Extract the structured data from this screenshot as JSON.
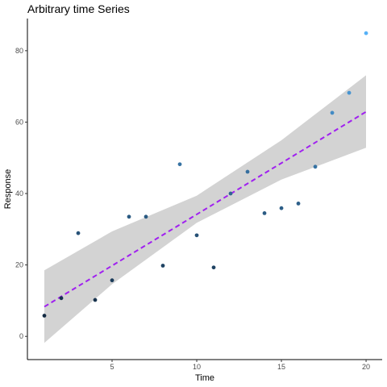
{
  "chart_data": {
    "type": "scatter",
    "title": "Arbitrary time Series",
    "xlabel": "Time",
    "ylabel": "Response",
    "xlim": [
      0.0,
      20.95
    ],
    "ylim": [
      -6.5,
      89.0
    ],
    "xticks": [
      5,
      10,
      15,
      20
    ],
    "yticks": [
      0,
      20,
      40,
      60,
      80
    ],
    "grid": false,
    "points": [
      {
        "x": 1,
        "y": 5.8
      },
      {
        "x": 2,
        "y": 10.7
      },
      {
        "x": 3,
        "y": 28.9
      },
      {
        "x": 4,
        "y": 10.2
      },
      {
        "x": 5,
        "y": 15.7
      },
      {
        "x": 6,
        "y": 33.5
      },
      {
        "x": 7,
        "y": 33.5
      },
      {
        "x": 8,
        "y": 19.8
      },
      {
        "x": 9,
        "y": 48.2
      },
      {
        "x": 10,
        "y": 28.3
      },
      {
        "x": 11,
        "y": 19.3
      },
      {
        "x": 12,
        "y": 40.0
      },
      {
        "x": 13,
        "y": 46.1
      },
      {
        "x": 14,
        "y": 34.5
      },
      {
        "x": 15,
        "y": 35.9
      },
      {
        "x": 16,
        "y": 37.2
      },
      {
        "x": 17,
        "y": 47.5
      },
      {
        "x": 18,
        "y": 62.6
      },
      {
        "x": 19,
        "y": 68.2
      },
      {
        "x": 20,
        "y": 84.9
      }
    ],
    "trend": {
      "method": "linear",
      "color": "#a020f0",
      "linestyle": "dashed",
      "start": {
        "x": 1,
        "y": 8.3
      },
      "end": {
        "x": 20,
        "y": 62.9
      }
    },
    "confidence_band": {
      "color": "#d3d3d3",
      "x": [
        1,
        5,
        10,
        15,
        20
      ],
      "lower": [
        -1.8,
        14.6,
        31.8,
        43.9,
        52.8
      ],
      "upper": [
        18.5,
        29.4,
        39.4,
        54.9,
        73.1
      ]
    },
    "point_color_scale": {
      "low": "#132b43",
      "high": "#56b1f7"
    }
  }
}
